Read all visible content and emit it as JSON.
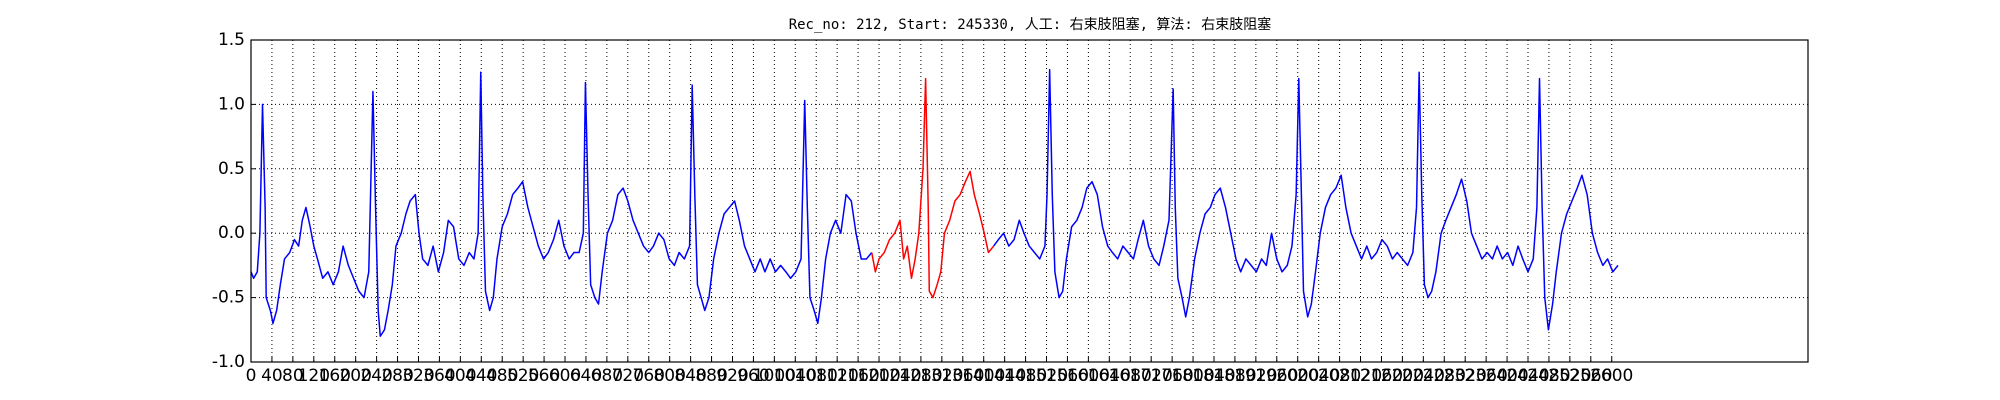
{
  "chart_data": {
    "type": "line",
    "title": "Rec_no: 212, Start: 245330, 人工: 右束肢阻塞, 算法: 右束肢阻塞",
    "xlim": [
      0,
      2975
    ],
    "xticks": [
      0,
      40,
      80,
      120,
      160,
      200,
      240,
      280,
      320,
      360,
      400,
      440,
      480,
      520,
      560,
      600,
      640,
      680,
      720,
      760,
      800,
      840,
      880,
      920,
      960,
      1000,
      1040,
      1080,
      1120,
      1160,
      1200,
      1240,
      1280,
      1320,
      1360,
      1400,
      1440,
      1480,
      1520,
      1560,
      1600,
      1640,
      1680,
      1720,
      1760,
      1800,
      1840,
      1880,
      1920,
      1960,
      2000,
      2040,
      2080,
      2120,
      2160,
      2200,
      2240,
      2280,
      2320,
      2360,
      2400,
      2440,
      2480,
      2520,
      2560,
      2600
    ],
    "ylim": [
      -1.0,
      1.5
    ],
    "yticks": [
      {
        "value": -1.0,
        "label": "-1.0"
      },
      {
        "value": -0.5,
        "label": "-0.5"
      },
      {
        "value": 0,
        "label": "0.0"
      },
      {
        "value": 0.5,
        "label": "0.5"
      },
      {
        "value": 1.0,
        "label": "1.0"
      },
      {
        "value": 1.5,
        "label": "1.5"
      }
    ],
    "grid": true,
    "series": [
      {
        "color": "#0000ff",
        "x": [
          0,
          5,
          12,
          17,
          22,
          27,
          29,
          37,
          42,
          49,
          56,
          64,
          74,
          83,
          91,
          98,
          105,
          113,
          120,
          127,
          137,
          147,
          157,
          167,
          176,
          186,
          196,
          206,
          216,
          225,
          233,
          238,
          243,
          247,
          255,
          262,
          270,
          277,
          287,
          296,
          304,
          314,
          321,
          328,
          338,
          348,
          358,
          368,
          377,
          387,
          397,
          407,
          417,
          426,
          434,
          439,
          443,
          448,
          456,
          463,
          470,
          480,
          490,
          500,
          510,
          519,
          529,
          539,
          549,
          559,
          568,
          578,
          588,
          598,
          608,
          617,
          627,
          635,
          639,
          644,
          649,
          657,
          664,
          671,
          681,
          691,
          701,
          711,
          720,
          730,
          740,
          750,
          760,
          769,
          779,
          789,
          799,
          809,
          818,
          828,
          838,
          843,
          848,
          853,
          860,
          867,
          875,
          884,
          894,
          904,
          914,
          924,
          933,
          943,
          953,
          963,
          973,
          982,
          992,
          1002,
          1012,
          1022,
          1031,
          1041,
          1051,
          1058,
          1063,
          1068,
          1076,
          1083,
          1090,
          1098,
          1107,
          1117,
          1127,
          1137,
          1147,
          1156,
          1166,
          1176,
          1186,
          1300,
          1419,
          1428,
          1438,
          1448,
          1458,
          1468,
          1477,
          1487,
          1497,
          1507,
          1517,
          1521,
          1526,
          1531,
          1536,
          1544,
          1551,
          1558,
          1568,
          1578,
          1588,
          1597,
          1607,
          1617,
          1627,
          1637,
          1646,
          1656,
          1666,
          1676,
          1686,
          1695,
          1705,
          1715,
          1725,
          1735,
          1744,
          1754,
          1762,
          1766,
          1771,
          1779,
          1786,
          1793,
          1803,
          1813,
          1823,
          1833,
          1842,
          1852,
          1862,
          1872,
          1882,
          1891,
          1901,
          1911,
          1921,
          1931,
          1940,
          1950,
          1960,
          1970,
          1980,
          1989,
          1997,
          2002,
          2007,
          2011,
          2019,
          2026,
          2034,
          2043,
          2053,
          2063,
          2073,
          2083,
          2092,
          2102,
          2112,
          2122,
          2132,
          2141,
          2151,
          2161,
          2171,
          2181,
          2190,
          2200,
          2210,
          2220,
          2227,
          2232,
          2237,
          2242,
          2249,
          2256,
          2264,
          2274,
          2283,
          2293,
          2303,
          2313,
          2323,
          2332,
          2342,
          2352,
          2362,
          2372,
          2381,
          2391,
          2401,
          2411,
          2421,
          2430,
          2440,
          2450,
          2457,
          2462,
          2467,
          2472,
          2479,
          2487,
          2494,
          2504,
          2514,
          2524,
          2534,
          2543,
          2553,
          2563,
          2573,
          2583,
          2592,
          2602,
          2612
        ],
        "values": [
          -0.3,
          -0.35,
          -0.3,
          0.0,
          1.0,
          0.2,
          -0.5,
          -0.6,
          -0.7,
          -0.6,
          -0.4,
          -0.2,
          -0.15,
          -0.05,
          -0.1,
          0.1,
          0.2,
          0.05,
          -0.1,
          -0.2,
          -0.35,
          -0.3,
          -0.4,
          -0.3,
          -0.1,
          -0.25,
          -0.35,
          -0.45,
          -0.5,
          -0.3,
          1.1,
          0.2,
          -0.6,
          -0.8,
          -0.75,
          -0.6,
          -0.4,
          -0.1,
          0.0,
          0.15,
          0.25,
          0.3,
          0.0,
          -0.2,
          -0.25,
          -0.1,
          -0.3,
          -0.15,
          0.1,
          0.05,
          -0.2,
          -0.25,
          -0.15,
          -0.2,
          0.0,
          1.25,
          0.3,
          -0.45,
          -0.6,
          -0.5,
          -0.2,
          0.05,
          0.15,
          0.3,
          0.35,
          0.4,
          0.2,
          0.05,
          -0.1,
          -0.2,
          -0.15,
          -0.05,
          0.1,
          -0.1,
          -0.2,
          -0.15,
          -0.15,
          0.0,
          1.17,
          0.3,
          -0.4,
          -0.5,
          -0.55,
          -0.3,
          0.0,
          0.1,
          0.3,
          0.35,
          0.25,
          0.1,
          0.0,
          -0.1,
          -0.15,
          -0.1,
          0.0,
          -0.05,
          -0.2,
          -0.25,
          -0.15,
          -0.2,
          -0.1,
          1.15,
          0.3,
          -0.4,
          -0.5,
          -0.6,
          -0.5,
          -0.2,
          0.0,
          0.15,
          0.2,
          0.25,
          0.1,
          -0.1,
          -0.2,
          -0.3,
          -0.2,
          -0.3,
          -0.2,
          -0.3,
          -0.25,
          -0.3,
          -0.35,
          -0.3,
          -0.2,
          1.03,
          0.2,
          -0.5,
          -0.6,
          -0.7,
          -0.5,
          -0.2,
          0.0,
          0.1,
          0.0,
          0.3,
          0.25,
          0.0,
          -0.2,
          -0.2,
          -0.15,
          null,
          -0.1,
          -0.05,
          0.0,
          -0.1,
          -0.05,
          0.1,
          0.0,
          -0.1,
          -0.15,
          -0.2,
          -0.1,
          0.3,
          1.27,
          0.3,
          -0.3,
          -0.5,
          -0.45,
          -0.2,
          0.05,
          0.1,
          0.2,
          0.35,
          0.4,
          0.3,
          0.05,
          -0.1,
          -0.15,
          -0.2,
          -0.1,
          -0.15,
          -0.2,
          -0.05,
          0.1,
          -0.1,
          -0.2,
          -0.25,
          -0.1,
          0.1,
          1.12,
          0.2,
          -0.35,
          -0.5,
          -0.65,
          -0.5,
          -0.2,
          0.0,
          0.15,
          0.2,
          0.3,
          0.35,
          0.2,
          0.0,
          -0.2,
          -0.3,
          -0.2,
          -0.25,
          -0.3,
          -0.2,
          -0.25,
          0.0,
          -0.2,
          -0.3,
          -0.25,
          -0.1,
          0.3,
          1.2,
          0.3,
          -0.45,
          -0.65,
          -0.55,
          -0.3,
          0.0,
          0.2,
          0.3,
          0.35,
          0.45,
          0.2,
          0.0,
          -0.1,
          -0.2,
          -0.1,
          -0.2,
          -0.15,
          -0.05,
          -0.1,
          -0.2,
          -0.15,
          -0.2,
          -0.25,
          -0.15,
          0.2,
          1.25,
          0.3,
          -0.4,
          -0.5,
          -0.45,
          -0.3,
          0.0,
          0.1,
          0.2,
          0.3,
          0.42,
          0.25,
          0.0,
          -0.1,
          -0.2,
          -0.15,
          -0.2,
          -0.1,
          -0.2,
          -0.15,
          -0.25,
          -0.1,
          -0.2,
          -0.3,
          -0.2,
          0.2,
          1.2,
          0.2,
          -0.5,
          -0.75,
          -0.55,
          -0.3,
          0.0,
          0.15,
          0.25,
          0.35,
          0.45,
          0.3,
          0.0,
          -0.15,
          -0.25,
          -0.2,
          -0.3,
          -0.25
        ]
      },
      {
        "color": "#ff0000",
        "x": [
          1186,
          1193,
          1200,
          1210,
          1220,
          1230,
          1240,
          1247,
          1254,
          1262,
          1269,
          1276,
          1284,
          1289,
          1294,
          1296,
          1303,
          1311,
          1318,
          1325,
          1335,
          1345,
          1355,
          1365,
          1374,
          1382,
          1392,
          1401,
          1409,
          1419
        ],
        "values": [
          -0.15,
          -0.3,
          -0.2,
          -0.15,
          -0.05,
          0.0,
          0.1,
          -0.2,
          -0.1,
          -0.35,
          -0.2,
          0.0,
          0.5,
          1.2,
          0.2,
          -0.45,
          -0.5,
          -0.4,
          -0.3,
          0.0,
          0.1,
          0.25,
          0.3,
          0.4,
          0.48,
          0.3,
          0.15,
          0.0,
          -0.15,
          -0.1
        ]
      }
    ]
  }
}
